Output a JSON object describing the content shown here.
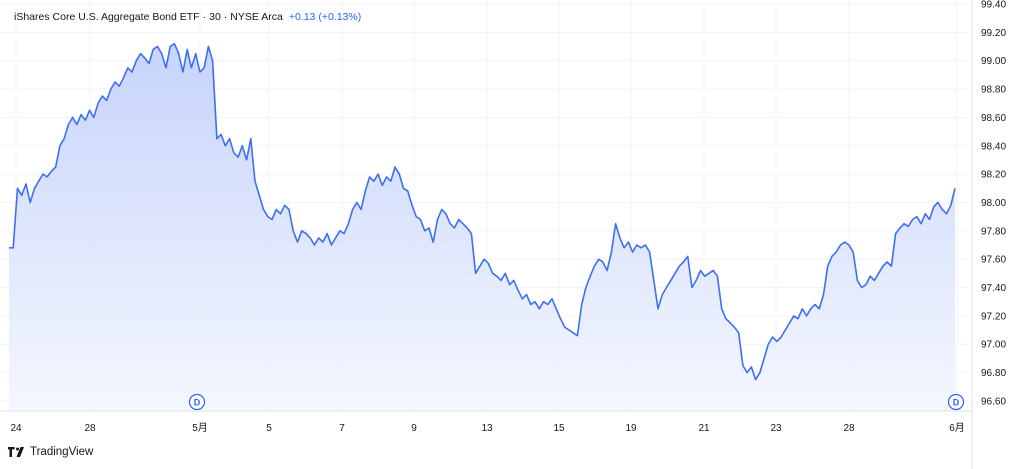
{
  "legend": {
    "symbol": "iShares Core U.S. Aggregate Bond ETF",
    "interval": "30",
    "exchange": "NYSE Arca",
    "change": "+0.13 (+0.13%)"
  },
  "brand": {
    "name": "TradingView"
  },
  "colors": {
    "line": "#3d6ff0",
    "fill_top": "#c6d3fb",
    "fill_bottom": "#f3f6fe",
    "grid": "#f0f3fa",
    "accent": "#2962ff"
  },
  "chart_data": {
    "type": "area",
    "ylim": [
      96.5,
      99.4
    ],
    "y_ticks": [
      "99.40",
      "99.20",
      "99.00",
      "98.80",
      "98.60",
      "98.40",
      "98.20",
      "98.00",
      "97.80",
      "97.60",
      "97.40",
      "97.20",
      "97.00",
      "96.80",
      "96.60"
    ],
    "x_ticks": [
      "24",
      "28",
      "5月",
      "5",
      "7",
      "9",
      "13",
      "15",
      "19",
      "21",
      "23",
      "28",
      "6月"
    ],
    "dividend_markers": [
      "D",
      "D"
    ],
    "grid": true,
    "values": [
      97.68,
      97.68,
      98.1,
      98.05,
      98.13,
      98.0,
      98.1,
      98.15,
      98.2,
      98.18,
      98.22,
      98.25,
      98.4,
      98.45,
      98.55,
      98.6,
      98.55,
      98.62,
      98.58,
      98.65,
      98.6,
      98.7,
      98.75,
      98.72,
      98.8,
      98.85,
      98.82,
      98.88,
      98.95,
      98.92,
      99.0,
      99.05,
      99.02,
      98.98,
      99.08,
      99.1,
      99.05,
      98.95,
      99.1,
      99.12,
      99.05,
      98.92,
      99.08,
      98.95,
      99.05,
      98.92,
      98.95,
      99.1,
      99.0,
      98.45,
      98.48,
      98.4,
      98.45,
      98.35,
      98.32,
      98.4,
      98.3,
      98.45,
      98.15,
      98.05,
      97.95,
      97.9,
      97.88,
      97.95,
      97.92,
      97.98,
      97.95,
      97.8,
      97.72,
      97.8,
      97.78,
      97.75,
      97.7,
      97.75,
      97.72,
      97.78,
      97.7,
      97.75,
      97.8,
      97.78,
      97.85,
      97.95,
      98.0,
      97.95,
      98.08,
      98.18,
      98.15,
      98.2,
      98.12,
      98.18,
      98.15,
      98.25,
      98.2,
      98.1,
      98.08,
      97.98,
      97.9,
      97.88,
      97.8,
      97.82,
      97.72,
      97.88,
      97.95,
      97.92,
      97.85,
      97.82,
      97.88,
      97.85,
      97.82,
      97.78,
      97.5,
      97.55,
      97.6,
      97.57,
      97.5,
      97.48,
      97.45,
      97.5,
      97.42,
      97.45,
      97.38,
      97.32,
      97.35,
      97.28,
      97.3,
      97.25,
      97.3,
      97.28,
      97.32,
      97.25,
      97.18,
      97.12,
      97.1,
      97.08,
      97.06,
      97.28,
      97.4,
      97.48,
      97.55,
      97.6,
      97.58,
      97.52,
      97.65,
      97.85,
      97.75,
      97.68,
      97.72,
      97.65,
      97.7,
      97.68,
      97.7,
      97.65,
      97.45,
      97.25,
      97.35,
      97.4,
      97.45,
      97.5,
      97.55,
      97.58,
      97.62,
      97.4,
      97.45,
      97.52,
      97.48,
      97.5,
      97.52,
      97.48,
      97.25,
      97.18,
      97.15,
      97.12,
      97.08,
      96.85,
      96.8,
      96.84,
      96.75,
      96.8,
      96.9,
      97.0,
      97.05,
      97.02,
      97.05,
      97.1,
      97.15,
      97.2,
      97.18,
      97.25,
      97.2,
      97.25,
      97.28,
      97.25,
      97.35,
      97.55,
      97.62,
      97.65,
      97.7,
      97.72,
      97.7,
      97.65,
      97.45,
      97.4,
      97.42,
      97.48,
      97.45,
      97.5,
      97.55,
      97.58,
      97.55,
      97.78,
      97.82,
      97.85,
      97.83,
      97.88,
      97.9,
      97.85,
      97.92,
      97.88,
      97.97,
      98.0,
      97.95,
      97.92,
      97.98,
      98.1
    ]
  }
}
